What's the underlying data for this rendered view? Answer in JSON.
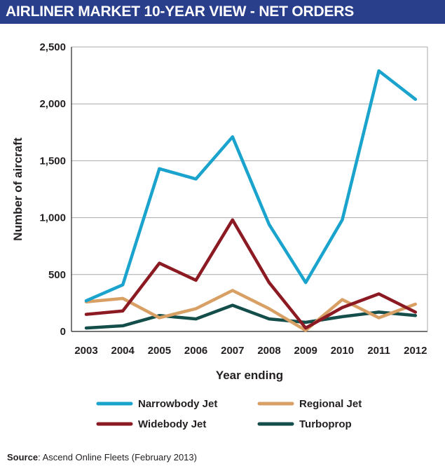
{
  "title": "AIRLINER MARKET 10-YEAR VIEW - NET ORDERS",
  "source": {
    "label": "Source",
    "text": ": Ascend Online Fleets (February 2013)"
  },
  "chart_data": {
    "type": "line",
    "title": "AIRLINER MARKET 10-YEAR VIEW - NET ORDERS",
    "xlabel": "Year ending",
    "ylabel": "Number of aircraft",
    "x": [
      "2003",
      "2004",
      "2005",
      "2006",
      "2007",
      "2008",
      "2009",
      "2010",
      "2011",
      "2012"
    ],
    "ylim": [
      0,
      2500
    ],
    "yticks": [
      0,
      500,
      1000,
      1500,
      2000,
      2500
    ],
    "ytick_labels": [
      "0",
      "500",
      "1,000",
      "1,500",
      "2,000",
      "2,500"
    ],
    "grid": true,
    "legend_position": "bottom",
    "series": [
      {
        "name": "Narrowbody Jet",
        "color": "#1aa3cc",
        "values": [
          270,
          410,
          1430,
          1340,
          1710,
          940,
          430,
          980,
          2290,
          2040
        ]
      },
      {
        "name": "Regional Jet",
        "color": "#d9a066",
        "values": [
          260,
          290,
          120,
          200,
          360,
          200,
          10,
          280,
          120,
          240
        ]
      },
      {
        "name": "Widebody Jet",
        "color": "#8b1a22",
        "values": [
          150,
          180,
          600,
          450,
          980,
          430,
          30,
          210,
          330,
          170
        ]
      },
      {
        "name": "Turboprop",
        "color": "#144e4a",
        "values": [
          30,
          50,
          140,
          110,
          230,
          110,
          80,
          130,
          170,
          140
        ]
      }
    ]
  }
}
